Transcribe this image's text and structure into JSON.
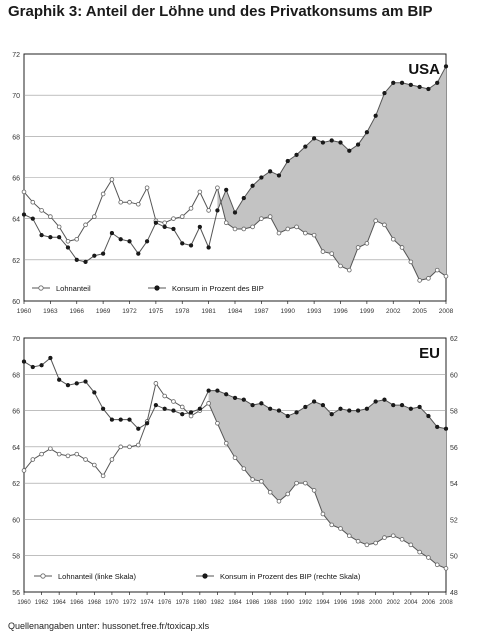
{
  "title": "Graphik 3: Anteil der Löhne und des Privatkonsums am BIP",
  "source": "Quellenangaben unter: hussonet.free.fr/toxicap.xls",
  "colors": {
    "fill": "#c3c3c3",
    "line": "#555555",
    "wage_marker": "#ffffff",
    "consumption_marker": "#1a1a1a",
    "plot_bg": "#ffffff",
    "grid": "#999999"
  },
  "chart_data": [
    {
      "type": "line",
      "panel_label": "USA",
      "x_ticks": [
        "1960",
        "1963",
        "1966",
        "1969",
        "1972",
        "1975",
        "1978",
        "1981",
        "1984",
        "1987",
        "1990",
        "1993",
        "1996",
        "1999",
        "2002",
        "2005",
        "2008"
      ],
      "x_range": [
        1960,
        2008
      ],
      "y_left": {
        "range": [
          60,
          72
        ],
        "ticks": [
          "60",
          "62",
          "64",
          "66",
          "68",
          "70",
          "72"
        ]
      },
      "grid": true,
      "legend_position": "bottom-left",
      "fill_between_series": "from 1982",
      "series": [
        {
          "name": "Lohnanteil",
          "axis": "left",
          "marker": "open-circle",
          "x": [
            1960,
            1961,
            1962,
            1963,
            1964,
            1965,
            1966,
            1967,
            1968,
            1969,
            1970,
            1971,
            1972,
            1973,
            1974,
            1975,
            1976,
            1977,
            1978,
            1979,
            1980,
            1981,
            1982,
            1983,
            1984,
            1985,
            1986,
            1987,
            1988,
            1989,
            1990,
            1991,
            1992,
            1993,
            1994,
            1995,
            1996,
            1997,
            1998,
            1999,
            2000,
            2001,
            2002,
            2003,
            2004,
            2005,
            2006,
            2007,
            2008
          ],
          "values": [
            65.3,
            64.8,
            64.4,
            64.1,
            63.6,
            62.9,
            63.0,
            63.7,
            64.1,
            65.2,
            65.9,
            64.8,
            64.8,
            64.7,
            65.5,
            63.9,
            63.8,
            64.0,
            64.1,
            64.5,
            65.3,
            64.4,
            65.5,
            63.8,
            63.5,
            63.5,
            63.6,
            64.0,
            64.1,
            63.3,
            63.5,
            63.6,
            63.3,
            63.2,
            62.4,
            62.3,
            61.7,
            61.5,
            62.6,
            62.8,
            63.9,
            63.7,
            63.0,
            62.6,
            61.9,
            61.0,
            61.1,
            61.5,
            61.2
          ]
        },
        {
          "name": "Konsum in Prozent des BIP",
          "axis": "left",
          "marker": "filled-circle",
          "x": [
            1960,
            1961,
            1962,
            1963,
            1964,
            1965,
            1966,
            1967,
            1968,
            1969,
            1970,
            1971,
            1972,
            1973,
            1974,
            1975,
            1976,
            1977,
            1978,
            1979,
            1980,
            1981,
            1982,
            1983,
            1984,
            1985,
            1986,
            1987,
            1988,
            1989,
            1990,
            1991,
            1992,
            1993,
            1994,
            1995,
            1996,
            1997,
            1998,
            1999,
            2000,
            2001,
            2002,
            2003,
            2004,
            2005,
            2006,
            2007,
            2008
          ],
          "values": [
            64.2,
            64.0,
            63.2,
            63.1,
            63.1,
            62.6,
            62.0,
            61.9,
            62.2,
            62.3,
            63.3,
            63.0,
            62.9,
            62.3,
            62.9,
            63.8,
            63.6,
            63.5,
            62.8,
            62.7,
            63.6,
            62.6,
            64.4,
            65.4,
            64.3,
            65.0,
            65.6,
            66.0,
            66.3,
            66.1,
            66.8,
            67.1,
            67.5,
            67.9,
            67.7,
            67.8,
            67.7,
            67.3,
            67.6,
            68.2,
            69.0,
            70.1,
            70.6,
            70.6,
            70.5,
            70.4,
            70.3,
            70.6,
            71.4
          ]
        }
      ]
    },
    {
      "type": "line",
      "panel_label": "EU",
      "x_ticks": [
        "1960",
        "1962",
        "1964",
        "1966",
        "1968",
        "1970",
        "1972",
        "1974",
        "1976",
        "1978",
        "1980",
        "1982",
        "1984",
        "1986",
        "1988",
        "1990",
        "1992",
        "1994",
        "1996",
        "1998",
        "2000",
        "2002",
        "2004",
        "2006",
        "2008"
      ],
      "x_range": [
        1960,
        2008
      ],
      "y_left": {
        "range": [
          56,
          70
        ],
        "ticks": [
          "56",
          "58",
          "60",
          "62",
          "64",
          "66",
          "68",
          "70"
        ]
      },
      "y_right": {
        "range": [
          48,
          62
        ],
        "ticks": [
          "48",
          "50",
          "52",
          "54",
          "56",
          "58",
          "60",
          "62"
        ]
      },
      "grid": true,
      "legend_position": "bottom-left",
      "fill_between_series": "from 1981",
      "series": [
        {
          "name": "Lohnanteil (linke Skala)",
          "axis": "left",
          "marker": "open-circle",
          "x": [
            1960,
            1961,
            1962,
            1963,
            1964,
            1965,
            1966,
            1967,
            1968,
            1969,
            1970,
            1971,
            1972,
            1973,
            1974,
            1975,
            1976,
            1977,
            1978,
            1979,
            1980,
            1981,
            1982,
            1983,
            1984,
            1985,
            1986,
            1987,
            1988,
            1989,
            1990,
            1991,
            1992,
            1993,
            1994,
            1995,
            1996,
            1997,
            1998,
            1999,
            2000,
            2001,
            2002,
            2003,
            2004,
            2005,
            2006,
            2007,
            2008
          ],
          "values": [
            62.7,
            63.3,
            63.6,
            63.9,
            63.6,
            63.5,
            63.6,
            63.3,
            63.0,
            62.4,
            63.3,
            64.0,
            64.0,
            64.1,
            65.4,
            67.5,
            66.8,
            66.5,
            66.2,
            65.7,
            66.0,
            66.4,
            65.3,
            64.2,
            63.4,
            62.8,
            62.2,
            62.1,
            61.5,
            61.0,
            61.4,
            62.0,
            62.0,
            61.6,
            60.3,
            59.7,
            59.5,
            59.1,
            58.8,
            58.6,
            58.7,
            59.0,
            59.1,
            58.9,
            58.6,
            58.2,
            57.9,
            57.5,
            57.3
          ]
        },
        {
          "name": "Konsum in Prozent des BIP (rechte Skala)",
          "axis": "right",
          "marker": "filled-circle",
          "x": [
            1960,
            1961,
            1962,
            1963,
            1964,
            1965,
            1966,
            1967,
            1968,
            1969,
            1970,
            1971,
            1972,
            1973,
            1974,
            1975,
            1976,
            1977,
            1978,
            1979,
            1980,
            1981,
            1982,
            1983,
            1984,
            1985,
            1986,
            1987,
            1988,
            1989,
            1990,
            1991,
            1992,
            1993,
            1994,
            1995,
            1996,
            1997,
            1998,
            1999,
            2000,
            2001,
            2002,
            2003,
            2004,
            2005,
            2006,
            2007,
            2008
          ],
          "values": [
            60.7,
            60.4,
            60.5,
            60.9,
            59.7,
            59.4,
            59.5,
            59.6,
            59.0,
            58.1,
            57.5,
            57.5,
            57.5,
            57.0,
            57.3,
            58.3,
            58.1,
            58.0,
            57.8,
            57.9,
            58.1,
            59.1,
            59.1,
            58.9,
            58.7,
            58.6,
            58.3,
            58.4,
            58.1,
            58.0,
            57.7,
            57.9,
            58.2,
            58.5,
            58.3,
            57.8,
            58.1,
            58.0,
            58.0,
            58.1,
            58.5,
            58.6,
            58.3,
            58.3,
            58.1,
            58.2,
            57.7,
            57.1,
            57.0
          ]
        }
      ]
    }
  ]
}
